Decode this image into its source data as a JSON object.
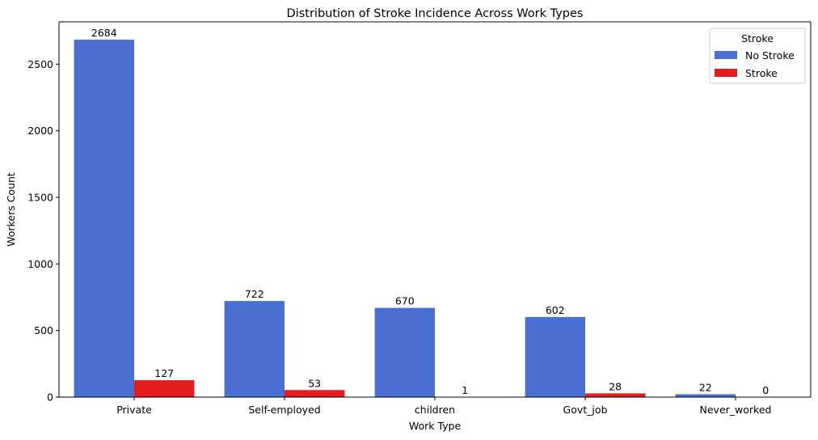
{
  "chart_data": {
    "type": "bar",
    "title": "Distribution of Stroke Incidence Across Work Types",
    "xlabel": "Work Type",
    "ylabel": "Workers Count",
    "categories": [
      "Private",
      "Self-employed",
      "children",
      "Govt_job",
      "Never_worked"
    ],
    "series": [
      {
        "name": "No Stroke",
        "color": "#4A6FD3",
        "values": [
          2684,
          722,
          670,
          602,
          22
        ]
      },
      {
        "name": "Stroke",
        "color": "#E41A1C",
        "values": [
          127,
          53,
          1,
          28,
          0
        ]
      }
    ],
    "ylim": [
      0,
      2818
    ],
    "yticks": [
      0,
      500,
      1000,
      1500,
      2000,
      2500
    ],
    "legend": {
      "title": "Stroke",
      "placement": "top-right"
    },
    "grid": false
  }
}
